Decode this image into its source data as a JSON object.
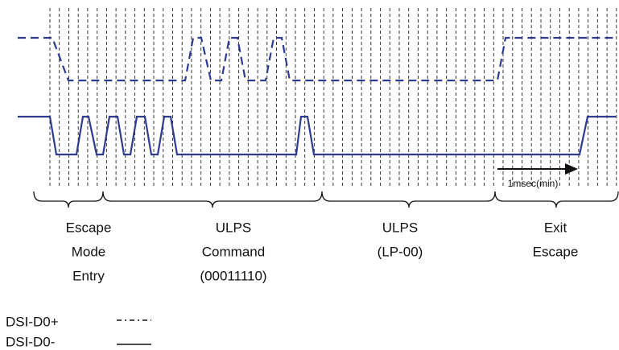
{
  "phases": [
    {
      "lines": [
        "Escape",
        "Mode",
        "Entry"
      ]
    },
    {
      "lines": [
        "ULPS",
        "Command",
        "(00011110)"
      ]
    },
    {
      "lines": [
        "ULPS",
        "(LP-00)"
      ]
    },
    {
      "lines": [
        "Exit",
        "Escape"
      ]
    }
  ],
  "annotation": "1msec(min)",
  "legend": [
    "DSI-D0+",
    "DSI-D0-"
  ]
}
